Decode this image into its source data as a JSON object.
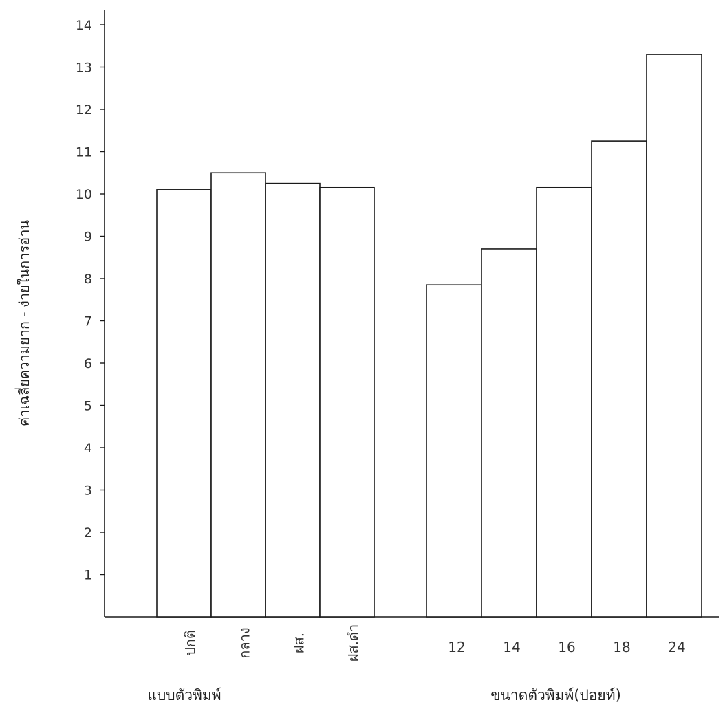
{
  "chart_data": {
    "type": "bar",
    "ylabel": "ค่าเฉลี่ยความยาก - ง่ายในการอ่าน",
    "ylim": [
      0,
      14
    ],
    "yticks": [
      1,
      2,
      3,
      4,
      5,
      6,
      7,
      8,
      9,
      10,
      11,
      12,
      13,
      14
    ],
    "grid": false,
    "groups": [
      {
        "label": "แบบตัวพิมพ์",
        "categories": [
          "ปกติ",
          "กลาง",
          "ฝส.",
          "ฝส.ดำ"
        ],
        "values": [
          10.1,
          10.5,
          10.25,
          10.15
        ]
      },
      {
        "label": "ขนาดตัวพิมพ์(ปอยท์)",
        "categories": [
          "12",
          "14",
          "16",
          "18",
          "24"
        ],
        "values": [
          7.85,
          8.7,
          10.15,
          11.25,
          13.3
        ]
      }
    ]
  }
}
